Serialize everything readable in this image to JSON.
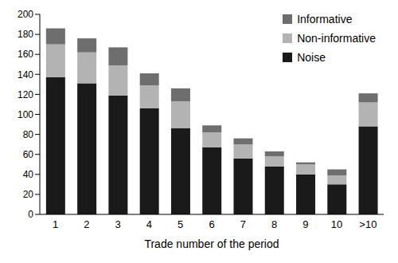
{
  "chart_data": {
    "type": "bar",
    "stacked": true,
    "x_label": "Trade number of the period",
    "categories": [
      "1",
      "2",
      "3",
      "4",
      "5",
      "6",
      "7",
      "8",
      "9",
      "10",
      ">10"
    ],
    "series": [
      {
        "name": "Noise",
        "color": "#1a1a1a",
        "values": [
          137,
          131,
          119,
          106,
          86,
          67,
          56,
          48,
          40,
          30,
          88
        ]
      },
      {
        "name": "Non-informative",
        "color": "#b3b3b3",
        "values": [
          33,
          31,
          30,
          23,
          27,
          15,
          14,
          10,
          10,
          9,
          24
        ]
      },
      {
        "name": "Informative",
        "color": "#6e6e6e",
        "values": [
          16,
          14,
          18,
          12,
          13,
          7,
          6,
          5,
          2,
          6,
          9
        ]
      }
    ],
    "ylim": [
      0,
      200
    ],
    "yticks": [
      0,
      20,
      40,
      60,
      80,
      100,
      120,
      140,
      160,
      180,
      200
    ],
    "grid": false,
    "legend": "upper right"
  }
}
